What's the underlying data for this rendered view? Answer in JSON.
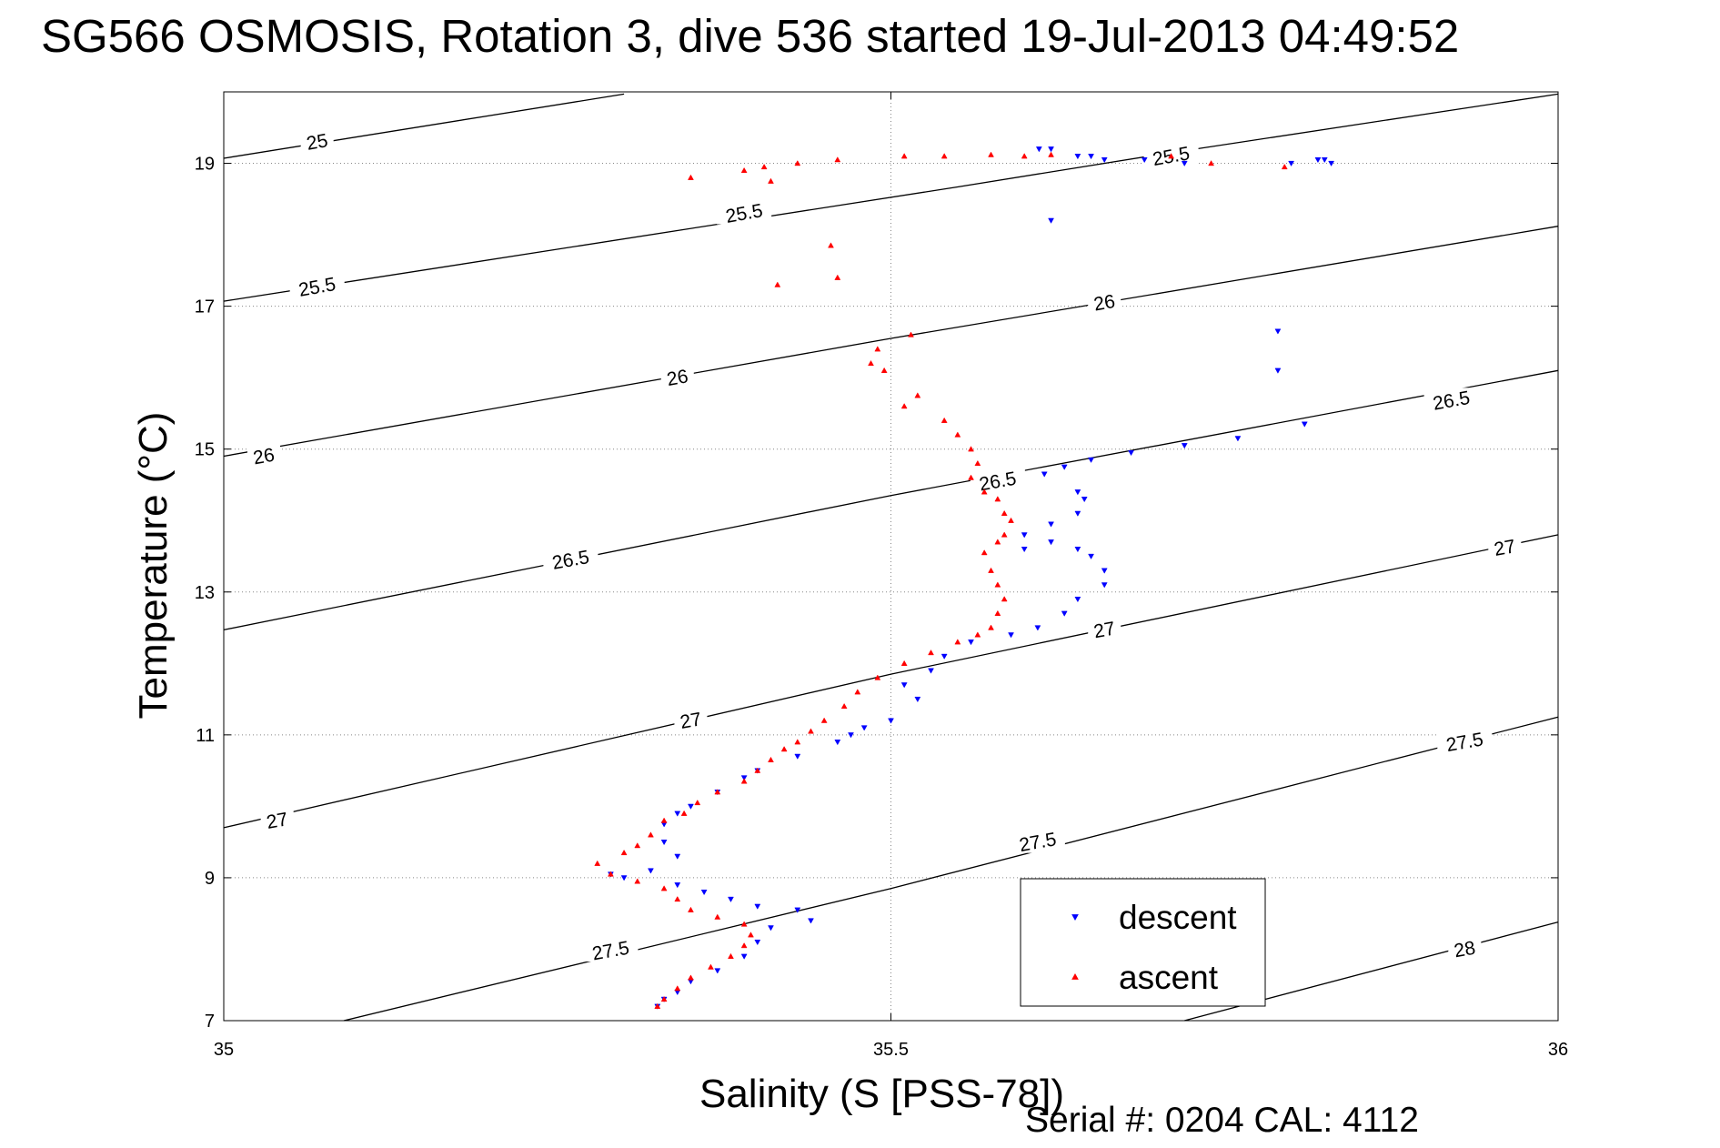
{
  "chart_data": {
    "type": "scatter",
    "title": "SG566 OSMOSIS, Rotation 3, dive 536 started 19-Jul-2013 04:49:52",
    "xlabel": "Salinity (S [PSS-78])",
    "ylabel": "Temperature (°C)",
    "xlim": [
      35,
      36
    ],
    "ylim": [
      7,
      20
    ],
    "x_ticks": [
      "35",
      "35.5",
      "36"
    ],
    "y_ticks": [
      "7",
      "9",
      "11",
      "13",
      "15",
      "17",
      "19"
    ],
    "grid": "dotted",
    "legend_position": "bottom-right",
    "footer": "Serial #: 0204  CAL: 4112",
    "contours": [
      {
        "label": "25",
        "points": [
          [
            35.0,
            19.07
          ],
          [
            35.3,
            19.97
          ]
        ],
        "label_positions": [
          [
            35.07,
            19.3
          ]
        ]
      },
      {
        "label": "25.5",
        "points": [
          [
            35.0,
            17.07
          ],
          [
            35.55,
            18.67
          ],
          [
            35.7,
            19.12
          ],
          [
            36.0,
            19.97
          ]
        ],
        "label_positions": [
          [
            35.07,
            17.27
          ],
          [
            35.39,
            18.3
          ],
          [
            35.71,
            19.1
          ]
        ]
      },
      {
        "label": "26",
        "points": [
          [
            35.0,
            14.9
          ],
          [
            35.5,
            16.55
          ],
          [
            36.0,
            18.12
          ]
        ],
        "label_positions": [
          [
            35.03,
            14.9
          ],
          [
            35.34,
            16.0
          ],
          [
            35.66,
            17.05
          ]
        ]
      },
      {
        "label": "26.5",
        "points": [
          [
            35.0,
            12.47
          ],
          [
            35.5,
            14.35
          ],
          [
            36.0,
            16.1
          ]
        ],
        "label_positions": [
          [
            35.26,
            13.45
          ],
          [
            35.58,
            14.55
          ],
          [
            35.92,
            15.68
          ]
        ]
      },
      {
        "label": "27",
        "points": [
          [
            35.0,
            9.7
          ],
          [
            35.5,
            11.85
          ],
          [
            36.0,
            13.8
          ]
        ],
        "label_positions": [
          [
            35.04,
            9.8
          ],
          [
            35.35,
            11.2
          ],
          [
            35.66,
            12.47
          ],
          [
            35.96,
            13.62
          ]
        ]
      },
      {
        "label": "27.5",
        "points": [
          [
            35.09,
            7.0
          ],
          [
            35.5,
            8.85
          ],
          [
            36.0,
            11.25
          ]
        ],
        "label_positions": [
          [
            35.29,
            7.98
          ],
          [
            35.61,
            9.5
          ],
          [
            35.93,
            10.9
          ]
        ]
      },
      {
        "label": "28",
        "points": [
          [
            35.72,
            7.0
          ],
          [
            36.0,
            8.38
          ]
        ],
        "label_positions": [
          [
            35.93,
            8.0
          ]
        ]
      }
    ],
    "series": [
      {
        "name": "descent",
        "color": "#0000ff",
        "marker": "triangle-down",
        "points": [
          [
            35.611,
            19.2
          ],
          [
            35.62,
            19.2
          ],
          [
            35.64,
            19.1
          ],
          [
            35.65,
            19.1
          ],
          [
            35.66,
            19.05
          ],
          [
            35.69,
            19.05
          ],
          [
            35.72,
            19.0
          ],
          [
            35.8,
            19.0
          ],
          [
            35.82,
            19.05
          ],
          [
            35.825,
            19.05
          ],
          [
            35.83,
            19.0
          ],
          [
            35.62,
            18.2
          ],
          [
            35.79,
            16.65
          ],
          [
            35.79,
            16.1
          ],
          [
            35.81,
            15.35
          ],
          [
            35.76,
            15.15
          ],
          [
            35.72,
            15.05
          ],
          [
            35.68,
            14.95
          ],
          [
            35.65,
            14.85
          ],
          [
            35.63,
            14.75
          ],
          [
            35.615,
            14.65
          ],
          [
            35.64,
            14.4
          ],
          [
            35.645,
            14.3
          ],
          [
            35.64,
            14.1
          ],
          [
            35.62,
            13.95
          ],
          [
            35.6,
            13.8
          ],
          [
            35.6,
            13.6
          ],
          [
            35.62,
            13.7
          ],
          [
            35.64,
            13.6
          ],
          [
            35.65,
            13.5
          ],
          [
            35.66,
            13.3
          ],
          [
            35.66,
            13.1
          ],
          [
            35.64,
            12.9
          ],
          [
            35.63,
            12.7
          ],
          [
            35.61,
            12.5
          ],
          [
            35.59,
            12.4
          ],
          [
            35.56,
            12.3
          ],
          [
            35.54,
            12.1
          ],
          [
            35.53,
            11.9
          ],
          [
            35.51,
            11.7
          ],
          [
            35.52,
            11.5
          ],
          [
            35.5,
            11.2
          ],
          [
            35.48,
            11.1
          ],
          [
            35.47,
            11.0
          ],
          [
            35.46,
            10.9
          ],
          [
            35.43,
            10.7
          ],
          [
            35.4,
            10.5
          ],
          [
            35.39,
            10.4
          ],
          [
            35.37,
            10.2
          ],
          [
            35.35,
            10.0
          ],
          [
            35.34,
            9.9
          ],
          [
            35.33,
            9.75
          ],
          [
            35.33,
            9.5
          ],
          [
            35.34,
            9.3
          ],
          [
            35.32,
            9.1
          ],
          [
            35.29,
            9.05
          ],
          [
            35.3,
            9.0
          ],
          [
            35.34,
            8.9
          ],
          [
            35.36,
            8.8
          ],
          [
            35.38,
            8.7
          ],
          [
            35.4,
            8.6
          ],
          [
            35.43,
            8.55
          ],
          [
            35.44,
            8.4
          ],
          [
            35.41,
            8.3
          ],
          [
            35.4,
            8.1
          ],
          [
            35.39,
            7.9
          ],
          [
            35.37,
            7.7
          ],
          [
            35.35,
            7.55
          ],
          [
            35.34,
            7.4
          ],
          [
            35.33,
            7.3
          ],
          [
            35.325,
            7.2
          ]
        ]
      },
      {
        "name": "ascent",
        "color": "#ff0000",
        "marker": "triangle-up",
        "points": [
          [
            35.35,
            18.8
          ],
          [
            35.39,
            18.9
          ],
          [
            35.405,
            18.95
          ],
          [
            35.41,
            18.75
          ],
          [
            35.43,
            19.0
          ],
          [
            35.46,
            19.05
          ],
          [
            35.51,
            19.1
          ],
          [
            35.54,
            19.1
          ],
          [
            35.575,
            19.12
          ],
          [
            35.6,
            19.1
          ],
          [
            35.62,
            19.12
          ],
          [
            35.71,
            19.1
          ],
          [
            35.74,
            19.0
          ],
          [
            35.795,
            18.95
          ],
          [
            35.455,
            17.85
          ],
          [
            35.46,
            17.4
          ],
          [
            35.415,
            17.3
          ],
          [
            35.515,
            16.6
          ],
          [
            35.49,
            16.4
          ],
          [
            35.485,
            16.2
          ],
          [
            35.495,
            16.1
          ],
          [
            35.52,
            15.75
          ],
          [
            35.51,
            15.6
          ],
          [
            35.54,
            15.4
          ],
          [
            35.55,
            15.2
          ],
          [
            35.56,
            15.0
          ],
          [
            35.565,
            14.8
          ],
          [
            35.56,
            14.6
          ],
          [
            35.57,
            14.4
          ],
          [
            35.58,
            14.3
          ],
          [
            35.585,
            14.1
          ],
          [
            35.59,
            14.0
          ],
          [
            35.585,
            13.8
          ],
          [
            35.58,
            13.7
          ],
          [
            35.57,
            13.55
          ],
          [
            35.575,
            13.3
          ],
          [
            35.58,
            13.1
          ],
          [
            35.585,
            12.9
          ],
          [
            35.58,
            12.7
          ],
          [
            35.575,
            12.5
          ],
          [
            35.565,
            12.4
          ],
          [
            35.55,
            12.3
          ],
          [
            35.53,
            12.15
          ],
          [
            35.51,
            12.0
          ],
          [
            35.49,
            11.8
          ],
          [
            35.475,
            11.6
          ],
          [
            35.465,
            11.4
          ],
          [
            35.45,
            11.2
          ],
          [
            35.44,
            11.05
          ],
          [
            35.43,
            10.9
          ],
          [
            35.42,
            10.8
          ],
          [
            35.41,
            10.65
          ],
          [
            35.4,
            10.5
          ],
          [
            35.39,
            10.35
          ],
          [
            35.37,
            10.2
          ],
          [
            35.355,
            10.05
          ],
          [
            35.345,
            9.9
          ],
          [
            35.33,
            9.8
          ],
          [
            35.32,
            9.6
          ],
          [
            35.31,
            9.45
          ],
          [
            35.3,
            9.35
          ],
          [
            35.28,
            9.2
          ],
          [
            35.29,
            9.05
          ],
          [
            35.31,
            8.95
          ],
          [
            35.33,
            8.85
          ],
          [
            35.34,
            8.7
          ],
          [
            35.35,
            8.55
          ],
          [
            35.37,
            8.45
          ],
          [
            35.39,
            8.35
          ],
          [
            35.395,
            8.2
          ],
          [
            35.39,
            8.05
          ],
          [
            35.38,
            7.9
          ],
          [
            35.365,
            7.75
          ],
          [
            35.35,
            7.6
          ],
          [
            35.34,
            7.45
          ],
          [
            35.33,
            7.3
          ],
          [
            35.325,
            7.2
          ]
        ]
      }
    ]
  }
}
